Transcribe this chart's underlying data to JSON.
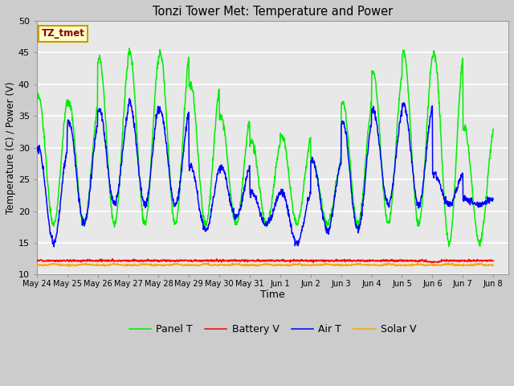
{
  "title": "Tonzi Tower Met: Temperature and Power",
  "xlabel": "Time",
  "ylabel": "Temperature (C) / Power (V)",
  "ylim": [
    10,
    50
  ],
  "annotation_text": "TZ_tmet",
  "annotation_box_facecolor": "#FFFFCC",
  "annotation_box_edgecolor": "#CC9900",
  "annotation_text_color": "#880000",
  "fig_facecolor": "#CCCCCC",
  "ax_facecolor": "#E8E8E8",
  "grid_color": "#FFFFFF",
  "xtick_labels": [
    "May 24",
    "May 25",
    "May 26",
    "May 27",
    "May 28",
    "May 29",
    "May 30",
    "May 31",
    "Jun 1",
    "Jun 2",
    "Jun 3",
    "Jun 4",
    "Jun 5",
    "Jun 6",
    "Jun 7",
    "Jun 8"
  ],
  "legend_entries": [
    "Panel T",
    "Battery V",
    "Air T",
    "Solar V"
  ],
  "panel_color": "#00EE00",
  "battery_color": "#FF0000",
  "air_color": "#0000FF",
  "solar_color": "#FFA500",
  "panel_peaks": [
    38,
    37,
    44,
    45,
    45,
    40,
    35,
    31,
    32,
    28,
    37,
    42,
    45,
    45,
    33,
    30
  ],
  "panel_mins": [
    18,
    18,
    18,
    18,
    18,
    18,
    18,
    18,
    18,
    18,
    18,
    18,
    18,
    15,
    15,
    18
  ],
  "air_peaks": [
    30,
    34,
    36,
    37,
    36,
    27,
    27,
    23,
    23,
    28,
    34,
    36,
    37,
    26,
    22,
    22
  ],
  "air_mins": [
    15,
    18,
    21,
    21,
    21,
    17,
    19,
    18,
    15,
    17,
    17,
    21,
    21,
    21,
    21,
    21
  ],
  "battery_mean": 12.2,
  "solar_mean": 11.5
}
